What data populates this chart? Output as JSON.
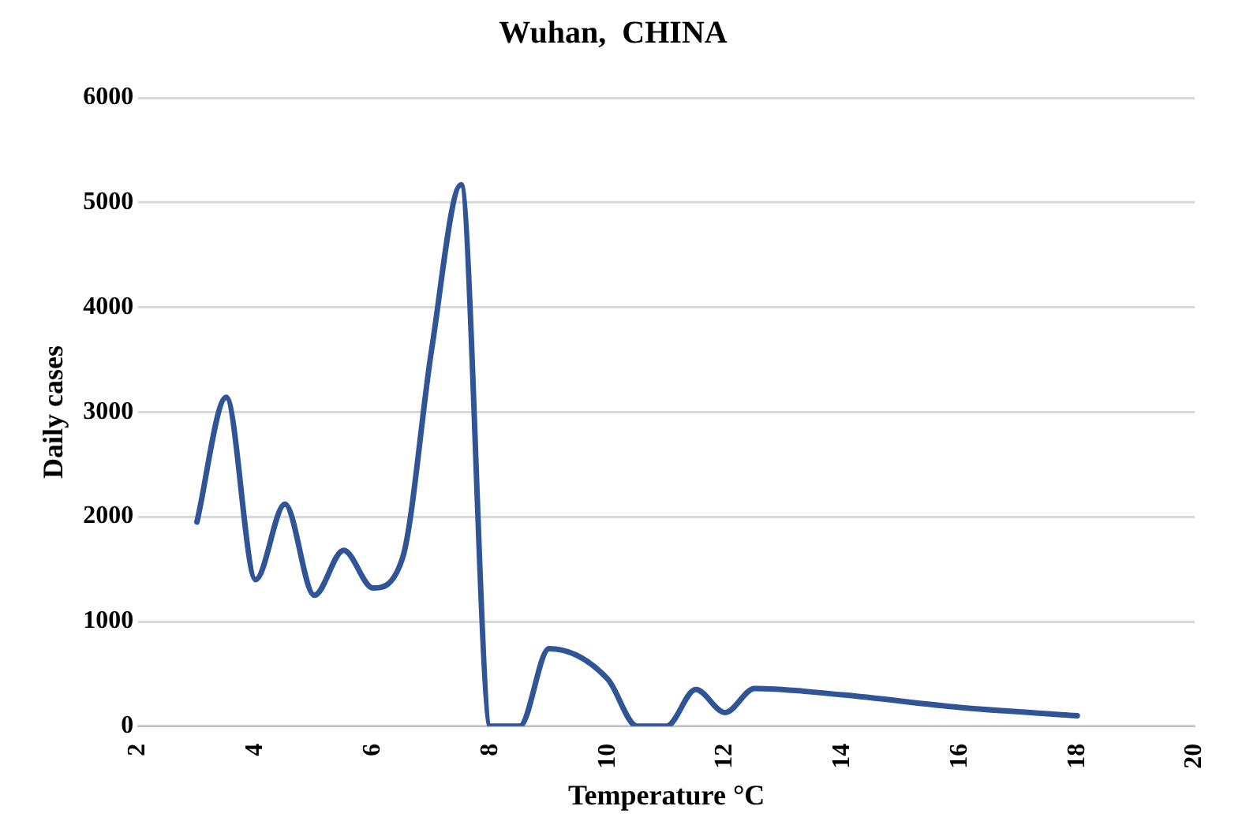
{
  "chart_data": {
    "type": "line",
    "title": "Wuhan,  CHINA",
    "xlabel": "Temperature °C",
    "ylabel": "Daily cases",
    "xlim": [
      2,
      20
    ],
    "xticks": [
      2,
      4,
      6,
      8,
      10,
      12,
      14,
      16,
      18,
      20
    ],
    "ylim": [
      0,
      6000
    ],
    "yticks": [
      0,
      1000,
      2000,
      3000,
      4000,
      5000,
      6000
    ],
    "grid": "y",
    "legend": false,
    "marker": "none",
    "line_style": "solid",
    "series": [
      {
        "color": "#2f5597",
        "x": [
          3,
          3.5,
          4,
          4.5,
          5,
          5.5,
          6,
          6.5,
          7,
          7.5,
          8,
          8.5,
          9,
          10,
          10.5,
          11,
          11.5,
          12,
          12.5,
          14,
          16,
          18
        ],
        "values": [
          1950,
          3140,
          1400,
          2120,
          1250,
          1680,
          1320,
          1600,
          3600,
          5170,
          0,
          0,
          740,
          450,
          0,
          0,
          350,
          130,
          360,
          300,
          180,
          100
        ]
      }
    ]
  }
}
